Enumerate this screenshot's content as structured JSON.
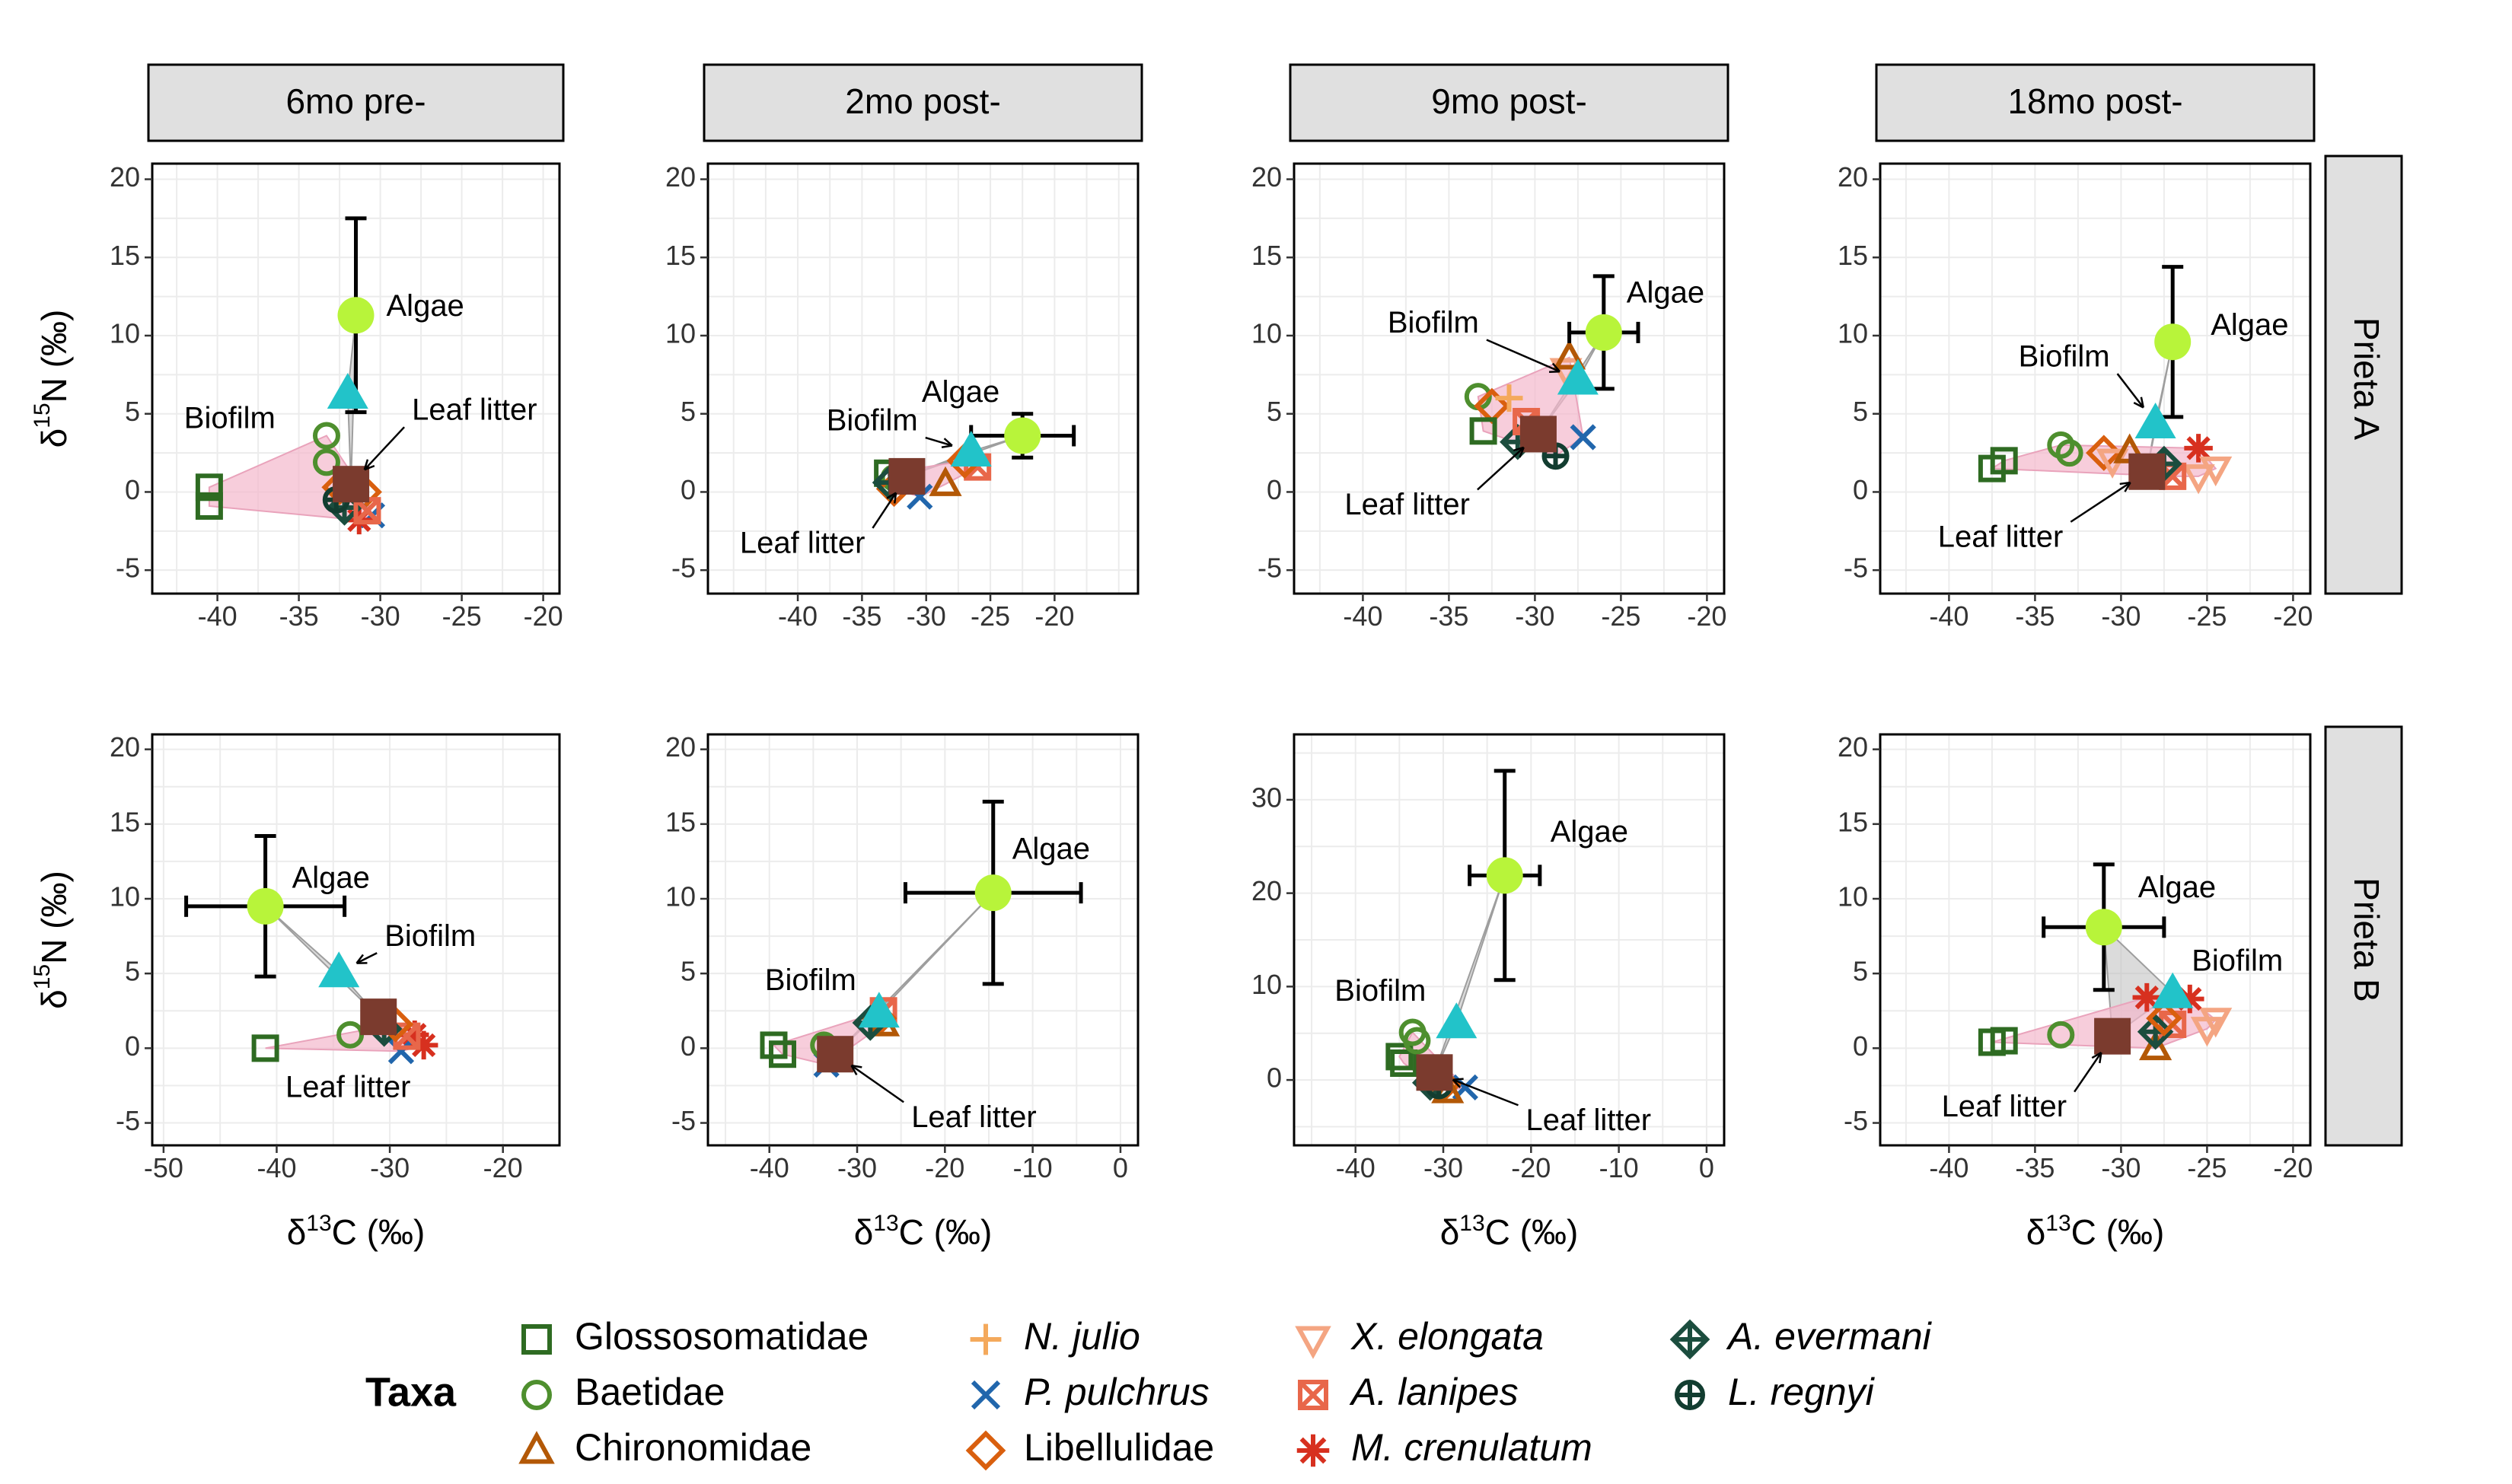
{
  "colors": {
    "algae": "#b8f43a",
    "biofilm": "#22c3c9",
    "leaf_litter": "#7b3b2e",
    "source_hull": "#bdbdbd",
    "consumer_hull": "#f4b8cc",
    "strip_fill": "#e0e0e0",
    "grid": "#ececec"
  },
  "labels": {
    "x_axis": "δ13C (‰)",
    "x_axis_main": "δ",
    "x_axis_sup": "13",
    "x_axis_tail": "C (‰)",
    "y_axis": "δ15N (‰)",
    "y_axis_main": "δ",
    "y_axis_sup": "15",
    "y_axis_tail": "N (‰)"
  },
  "legend": {
    "title": "Taxa",
    "items": [
      {
        "name": "Glossosomatidae",
        "shape": "square",
        "color": "#2e6b22",
        "italic": false
      },
      {
        "name": "Baetidae",
        "shape": "circle",
        "color": "#4e8f2e",
        "italic": false
      },
      {
        "name": "Chironomidae",
        "shape": "triangle",
        "color": "#b35806",
        "italic": false
      },
      {
        "name": "N. julio",
        "shape": "plus",
        "color": "#f4a95c",
        "italic": true
      },
      {
        "name": "P. pulchrus",
        "shape": "cross",
        "color": "#2166ac",
        "italic": true
      },
      {
        "name": "Libellulidae",
        "shape": "diamond",
        "color": "#d95f0e",
        "italic": false
      },
      {
        "name": "X. elongata",
        "shape": "triangle-down",
        "color": "#f4a582",
        "italic": true
      },
      {
        "name": "A. lanipes",
        "shape": "square-x",
        "color": "#e8674a",
        "italic": true
      },
      {
        "name": "M. crenulatum",
        "shape": "asterisk",
        "color": "#d7301f",
        "italic": true
      },
      {
        "name": "A. evermani",
        "shape": "diamond-plus",
        "color": "#1b4d3e",
        "italic": true
      },
      {
        "name": "L. regnyi",
        "shape": "circle-plus",
        "color": "#123d30",
        "italic": true
      }
    ]
  },
  "chart_data": [
    {
      "type": "scatter",
      "col_label": "6mo pre-",
      "row_label": "Prieta A",
      "xlim": [
        -44,
        -19
      ],
      "ylim": [
        -6.5,
        21
      ],
      "xticks": [
        -40,
        -35,
        -30,
        -25,
        -20
      ],
      "yticks": [
        -5,
        0,
        5,
        10,
        15,
        20
      ],
      "sources": [
        {
          "label": "Algae",
          "x": -31.5,
          "y": 11.3,
          "xerr": 0.3,
          "yerr": 6.2
        },
        {
          "label": "Biofilm",
          "x": -32.0,
          "y": 6.3
        },
        {
          "label": "Leaf litter",
          "x": -31.8,
          "y": 0.5
        }
      ],
      "consumers": [
        {
          "taxon": "Glossosomatidae",
          "x": -40.5,
          "y": 0.3
        },
        {
          "taxon": "Glossosomatidae",
          "x": -40.5,
          "y": -0.9
        },
        {
          "taxon": "Baetidae",
          "x": -33.3,
          "y": 3.6
        },
        {
          "taxon": "Baetidae",
          "x": -33.3,
          "y": 1.9
        },
        {
          "taxon": "Libellulidae",
          "x": -31.0,
          "y": 0.0
        },
        {
          "taxon": "Libellulidae",
          "x": -32.5,
          "y": 0.3
        },
        {
          "taxon": "P. pulchrus",
          "x": -30.5,
          "y": -1.5
        },
        {
          "taxon": "M. crenulatum",
          "x": -31.3,
          "y": -1.8
        },
        {
          "taxon": "A. evermani",
          "x": -32.2,
          "y": -1.0
        },
        {
          "taxon": "L. regnyi",
          "x": -32.7,
          "y": -0.5
        },
        {
          "taxon": "A. lanipes",
          "x": -30.8,
          "y": -1.2
        }
      ]
    },
    {
      "type": "scatter",
      "col_label": "2mo post-",
      "row_label": "Prieta A",
      "xlim": [
        -47,
        -13.5
      ],
      "ylim": [
        -6.5,
        21
      ],
      "xticks": [
        -40,
        -35,
        -30,
        -25,
        -20
      ],
      "yticks": [
        -5,
        0,
        5,
        10,
        15,
        20
      ],
      "sources": [
        {
          "label": "Algae",
          "x": -22.5,
          "y": 3.6,
          "xerr": 4.0,
          "yerr": 1.4
        },
        {
          "label": "Biofilm",
          "x": -26.5,
          "y": 2.6
        },
        {
          "label": "Leaf litter",
          "x": -31.5,
          "y": 1.0
        }
      ],
      "consumers": [
        {
          "taxon": "Glossosomatidae",
          "x": -33.0,
          "y": 1.2
        },
        {
          "taxon": "Baetidae",
          "x": -32.5,
          "y": 0.9
        },
        {
          "taxon": "Libellulidae",
          "x": -32.5,
          "y": 0.2
        },
        {
          "taxon": "Chironomidae",
          "x": -28.5,
          "y": 0.5
        },
        {
          "taxon": "P. pulchrus",
          "x": -30.5,
          "y": -0.3
        },
        {
          "taxon": "A. lanipes",
          "x": -26.0,
          "y": 1.6
        },
        {
          "taxon": "A. evermani",
          "x": -32.8,
          "y": 0.6
        },
        {
          "taxon": "Libellulidae",
          "x": -27.0,
          "y": 2.0
        }
      ]
    },
    {
      "type": "scatter",
      "col_label": "9mo post-",
      "row_label": "Prieta A",
      "xlim": [
        -44,
        -19
      ],
      "ylim": [
        -6.5,
        21
      ],
      "xticks": [
        -40,
        -35,
        -30,
        -25,
        -20
      ],
      "yticks": [
        -5,
        0,
        5,
        10,
        15,
        20
      ],
      "sources": [
        {
          "label": "Algae",
          "x": -26.0,
          "y": 10.2,
          "xerr": 2.0,
          "yerr": 3.6
        },
        {
          "label": "Biofilm",
          "x": -27.5,
          "y": 7.2
        },
        {
          "label": "Leaf litter",
          "x": -29.8,
          "y": 3.7
        }
      ],
      "consumers": [
        {
          "taxon": "Baetidae",
          "x": -33.3,
          "y": 6.1
        },
        {
          "taxon": "Libellulidae",
          "x": -32.5,
          "y": 5.5
        },
        {
          "taxon": "N. julio",
          "x": -31.5,
          "y": 6.0
        },
        {
          "taxon": "X. elongata",
          "x": -28.2,
          "y": 7.8
        },
        {
          "taxon": "Chironomidae",
          "x": -28.0,
          "y": 8.6
        },
        {
          "taxon": "Glossosomatidae",
          "x": -33.0,
          "y": 3.9
        },
        {
          "taxon": "P. pulchrus",
          "x": -27.2,
          "y": 3.5
        },
        {
          "taxon": "A. evermani",
          "x": -31.0,
          "y": 3.2
        },
        {
          "taxon": "L. regnyi",
          "x": -28.8,
          "y": 2.3
        },
        {
          "taxon": "A. lanipes",
          "x": -30.5,
          "y": 4.5
        }
      ]
    },
    {
      "type": "scatter",
      "col_label": "18mo post-",
      "row_label": "Prieta A",
      "xlim": [
        -44,
        -19
      ],
      "ylim": [
        -6.5,
        21
      ],
      "xticks": [
        -40,
        -35,
        -30,
        -25,
        -20
      ],
      "yticks": [
        -5,
        0,
        5,
        10,
        15,
        20
      ],
      "sources": [
        {
          "label": "Algae",
          "x": -27.0,
          "y": 9.6,
          "xerr": 0.2,
          "yerr": 4.8
        },
        {
          "label": "Biofilm",
          "x": -28.0,
          "y": 4.4
        },
        {
          "label": "Leaf litter",
          "x": -28.5,
          "y": 1.3
        }
      ],
      "consumers": [
        {
          "taxon": "Glossosomatidae",
          "x": -37.5,
          "y": 1.5
        },
        {
          "taxon": "Glossosomatidae",
          "x": -36.8,
          "y": 2.0
        },
        {
          "taxon": "Baetidae",
          "x": -33.5,
          "y": 3.0
        },
        {
          "taxon": "Baetidae",
          "x": -33.0,
          "y": 2.5
        },
        {
          "taxon": "Libellulidae",
          "x": -31.0,
          "y": 2.5
        },
        {
          "taxon": "X. elongata",
          "x": -30.5,
          "y": 2.0
        },
        {
          "taxon": "Chironomidae",
          "x": -29.5,
          "y": 2.6
        },
        {
          "taxon": "M. crenulatum",
          "x": -25.5,
          "y": 2.8
        },
        {
          "taxon": "X. elongata",
          "x": -24.5,
          "y": 1.5
        },
        {
          "taxon": "X. elongata",
          "x": -25.5,
          "y": 1.0
        },
        {
          "taxon": "A. lanipes",
          "x": -27.0,
          "y": 1.0
        },
        {
          "taxon": "A. evermani",
          "x": -27.5,
          "y": 1.8
        }
      ]
    },
    {
      "type": "scatter",
      "col_label": "6mo pre-",
      "row_label": "Prieta B",
      "xlim": [
        -51,
        -15
      ],
      "ylim": [
        -6.5,
        21
      ],
      "xticks": [
        -50,
        -40,
        -30,
        -20
      ],
      "yticks": [
        -5,
        0,
        5,
        10,
        15,
        20
      ],
      "sources": [
        {
          "label": "Algae",
          "x": -41.0,
          "y": 9.5,
          "xerr": 7.0,
          "yerr": 4.7
        },
        {
          "label": "Biofilm",
          "x": -34.5,
          "y": 5.1
        },
        {
          "label": "Leaf litter",
          "x": -31.0,
          "y": 2.1
        }
      ],
      "consumers": [
        {
          "taxon": "Glossosomatidae",
          "x": -41.0,
          "y": 0.0
        },
        {
          "taxon": "Baetidae",
          "x": -33.5,
          "y": 0.9
        },
        {
          "taxon": "M. crenulatum",
          "x": -27.0,
          "y": 0.2
        },
        {
          "taxon": "M. crenulatum",
          "x": -27.8,
          "y": 0.9
        },
        {
          "taxon": "P. pulchrus",
          "x": -29.0,
          "y": -0.2
        },
        {
          "taxon": "A. lanipes",
          "x": -28.5,
          "y": 0.8
        },
        {
          "taxon": "A. evermani",
          "x": -30.5,
          "y": 1.3
        },
        {
          "taxon": "Libellulidae",
          "x": -29.5,
          "y": 1.6
        }
      ]
    },
    {
      "type": "scatter",
      "col_label": "2mo post-",
      "row_label": "Prieta B",
      "xlim": [
        -47,
        2
      ],
      "ylim": [
        -6.5,
        21
      ],
      "xticks": [
        -40,
        -30,
        -20,
        -10,
        0
      ],
      "yticks": [
        -5,
        0,
        5,
        10,
        15,
        20
      ],
      "sources": [
        {
          "label": "Algae",
          "x": -14.5,
          "y": 10.4,
          "xerr": 10.0,
          "yerr": 6.1
        },
        {
          "label": "Biofilm",
          "x": -27.5,
          "y": 2.4
        },
        {
          "label": "Leaf litter",
          "x": -32.5,
          "y": -0.4
        }
      ],
      "consumers": [
        {
          "taxon": "Glossosomatidae",
          "x": -39.5,
          "y": 0.2
        },
        {
          "taxon": "Glossosomatidae",
          "x": -38.5,
          "y": -0.4
        },
        {
          "taxon": "P. pulchrus",
          "x": -33.5,
          "y": -1.1
        },
        {
          "taxon": "N. julio",
          "x": -33.0,
          "y": -0.7
        },
        {
          "taxon": "Baetidae",
          "x": -33.8,
          "y": 0.2
        },
        {
          "taxon": "A. lanipes",
          "x": -27.0,
          "y": 2.5
        },
        {
          "taxon": "Libellulidae",
          "x": -27.5,
          "y": 2.0
        },
        {
          "taxon": "Chironomidae",
          "x": -27.0,
          "y": 1.6
        },
        {
          "taxon": "A. evermani",
          "x": -28.5,
          "y": 1.7
        }
      ]
    },
    {
      "type": "scatter",
      "col_label": "9mo post-",
      "row_label": "Prieta B",
      "xlim": [
        -47,
        2
      ],
      "ylim": [
        -7,
        37
      ],
      "xticks": [
        -40,
        -30,
        -20,
        -10,
        0
      ],
      "yticks": [
        0,
        10,
        20,
        30
      ],
      "sources": [
        {
          "label": "Algae",
          "x": -23.0,
          "y": 21.9,
          "xerr": 4.0,
          "yerr": 11.2
        },
        {
          "label": "Biofilm",
          "x": -28.5,
          "y": 6.1
        },
        {
          "label": "Leaf litter",
          "x": -31.0,
          "y": 0.8
        }
      ],
      "consumers": [
        {
          "taxon": "Glossosomatidae",
          "x": -35.0,
          "y": 2.5
        },
        {
          "taxon": "Glossosomatidae",
          "x": -34.5,
          "y": 1.8
        },
        {
          "taxon": "Baetidae",
          "x": -33.5,
          "y": 5.1
        },
        {
          "taxon": "Baetidae",
          "x": -33.0,
          "y": 4.2
        },
        {
          "taxon": "P. pulchrus",
          "x": -27.5,
          "y": -0.8
        },
        {
          "taxon": "Libellulidae",
          "x": -30.0,
          "y": -0.5
        },
        {
          "taxon": "Chironomidae",
          "x": -29.5,
          "y": -1.2
        },
        {
          "taxon": "A. evermani",
          "x": -31.5,
          "y": -0.3
        },
        {
          "taxon": "L. regnyi",
          "x": -30.5,
          "y": -0.6
        }
      ]
    },
    {
      "type": "scatter",
      "col_label": "18mo post-",
      "row_label": "Prieta B",
      "xlim": [
        -44,
        -19
      ],
      "ylim": [
        -6.5,
        21
      ],
      "xticks": [
        -40,
        -35,
        -30,
        -25,
        -20
      ],
      "yticks": [
        -5,
        0,
        5,
        10,
        15,
        20
      ],
      "sources": [
        {
          "label": "Algae",
          "x": -31.0,
          "y": 8.1,
          "xerr": 3.5,
          "yerr": 4.2
        },
        {
          "label": "Biofilm",
          "x": -27.0,
          "y": 3.7
        },
        {
          "label": "Leaf litter",
          "x": -30.5,
          "y": 0.8
        }
      ],
      "consumers": [
        {
          "taxon": "Glossosomatidae",
          "x": -37.5,
          "y": 0.4
        },
        {
          "taxon": "Glossosomatidae",
          "x": -36.8,
          "y": 0.5
        },
        {
          "taxon": "Baetidae",
          "x": -33.5,
          "y": 0.9
        },
        {
          "taxon": "Chironomidae",
          "x": -28.0,
          "y": 0.0
        },
        {
          "taxon": "A. lanipes",
          "x": -27.0,
          "y": 1.6
        },
        {
          "taxon": "X. elongata",
          "x": -25.0,
          "y": 1.3
        },
        {
          "taxon": "X. elongata",
          "x": -24.5,
          "y": 1.9
        },
        {
          "taxon": "M. crenulatum",
          "x": -28.5,
          "y": 3.4
        },
        {
          "taxon": "M. crenulatum",
          "x": -26.0,
          "y": 3.3
        },
        {
          "taxon": "A. evermani",
          "x": -28.0,
          "y": 1.1
        },
        {
          "taxon": "Libellulidae",
          "x": -27.5,
          "y": 2.0
        }
      ]
    }
  ]
}
